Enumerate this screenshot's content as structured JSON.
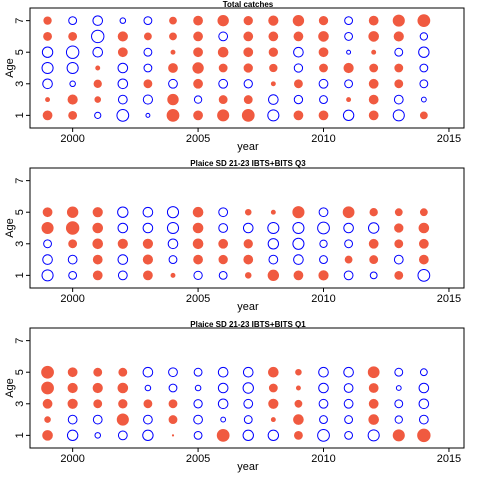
{
  "colors": {
    "positive": "#f05a40",
    "negative": "#0000ff",
    "axis": "#000000"
  },
  "chart_data": [
    {
      "type": "scatter",
      "title": "Total catches",
      "xlabel": "year",
      "ylabel": "Age",
      "xlim": [
        1998.3,
        2015.6
      ],
      "ylim": [
        0.2,
        7.8
      ],
      "x_ticks": [
        2000,
        2005,
        2010,
        2015
      ],
      "y_ticks": [
        1,
        3,
        5,
        7
      ],
      "years": [
        1999,
        2000,
        2001,
        2002,
        2003,
        2004,
        2005,
        2006,
        2007,
        2008,
        2009,
        2010,
        2011,
        2012,
        2013,
        2014
      ],
      "residuals": [
        {
          "age": 7,
          "values": [
            0.35,
            -0.4,
            -0.6,
            -0.2,
            -0.4,
            0.3,
            0.5,
            0.7,
            0.45,
            0.55,
            0.7,
            0.45,
            -0.4,
            0.5,
            0.8,
            0.9
          ]
        },
        {
          "age": 6,
          "values": [
            0.4,
            0.4,
            -1.0,
            0.55,
            0.3,
            0.3,
            0.5,
            -0.5,
            0.5,
            0.5,
            0.5,
            0.6,
            -0.4,
            0.6,
            0.55,
            -0.35
          ]
        },
        {
          "age": 5,
          "values": [
            -0.7,
            -1.0,
            -0.6,
            0.5,
            -0.4,
            0.1,
            0.5,
            0.6,
            0.5,
            0.45,
            -0.6,
            0.5,
            -0.1,
            0.1,
            -0.4,
            -0.7
          ]
        },
        {
          "age": 4,
          "values": [
            -0.8,
            -0.8,
            0.1,
            -0.6,
            -0.4,
            0.5,
            0.7,
            0.4,
            0.45,
            0.35,
            -0.45,
            0.4,
            0.55,
            0.4,
            0.4,
            -0.4
          ]
        },
        {
          "age": 3,
          "values": [
            -0.6,
            -0.2,
            0.35,
            -0.6,
            0.4,
            -0.5,
            0.5,
            -0.5,
            -0.45,
            0.1,
            0.4,
            -0.5,
            -0.4,
            0.5,
            0.4,
            -0.4
          ]
        },
        {
          "age": 2,
          "values": [
            0.1,
            0.55,
            0.2,
            -0.5,
            -0.55,
            0.7,
            -0.35,
            0.4,
            0.4,
            -0.6,
            -0.45,
            -0.4,
            0.1,
            0.5,
            -0.5,
            -0.15
          ]
        },
        {
          "age": 1,
          "values": [
            0.5,
            0.4,
            -0.25,
            -0.9,
            -0.1,
            0.9,
            0.5,
            0.8,
            0.9,
            -0.8,
            0.5,
            0.5,
            -0.7,
            0.5,
            -0.8,
            0.3
          ]
        }
      ]
    },
    {
      "type": "scatter",
      "title": "Plaice SD 21-23 IBTS+BITS Q3",
      "xlabel": "year",
      "ylabel": "Age",
      "xlim": [
        1998.3,
        2015.6
      ],
      "ylim": [
        0.2,
        7.8
      ],
      "x_ticks": [
        2000,
        2005,
        2010,
        2015
      ],
      "y_ticks": [
        1,
        3,
        5,
        7
      ],
      "years": [
        1999,
        2000,
        2001,
        2002,
        2003,
        2004,
        2005,
        2006,
        2007,
        2008,
        2009,
        2010,
        2011,
        2012,
        2013,
        2014
      ],
      "residuals": [
        {
          "age": 5,
          "values": [
            0.5,
            0.7,
            0.55,
            -0.7,
            -0.6,
            -0.8,
            0.6,
            -0.5,
            0.2,
            0.1,
            0.8,
            -0.5,
            0.75,
            0.35,
            0.3,
            0.3
          ]
        },
        {
          "age": 4,
          "values": [
            0.8,
            1.0,
            0.6,
            -0.6,
            -0.6,
            -0.8,
            0.6,
            -0.5,
            -0.6,
            -0.8,
            -0.8,
            -0.9,
            -0.6,
            -0.7,
            0.45,
            0.6
          ]
        },
        {
          "age": 3,
          "values": [
            -0.4,
            0.4,
            0.6,
            0.55,
            0.55,
            -0.6,
            0.6,
            0.5,
            0.45,
            -0.7,
            -0.8,
            -0.35,
            -0.4,
            0.5,
            0.4,
            0.5
          ]
        },
        {
          "age": 2,
          "values": [
            -0.6,
            -0.5,
            0.5,
            -0.6,
            0.55,
            -0.4,
            0.5,
            0.45,
            0.5,
            -0.5,
            -0.6,
            -0.4,
            0.3,
            0.4,
            -0.5,
            0.5
          ]
        },
        {
          "age": 1,
          "values": [
            -0.8,
            -0.4,
            0.5,
            -0.5,
            0.5,
            0.1,
            -0.45,
            -0.4,
            0.2,
            0.7,
            0.5,
            0.55,
            -0.5,
            -0.3,
            0.4,
            -0.9
          ]
        }
      ]
    },
    {
      "type": "scatter",
      "title": "Plaice SD 21-23 IBTS+BITS Q1",
      "xlabel": "year",
      "ylabel": "Age",
      "xlim": [
        1998.3,
        2015.6
      ],
      "ylim": [
        0.2,
        7.8
      ],
      "x_ticks": [
        2000,
        2005,
        2010,
        2015
      ],
      "y_ticks": [
        1,
        3,
        5,
        7
      ],
      "years": [
        1999,
        2000,
        2001,
        2002,
        2003,
        2004,
        2005,
        2006,
        2007,
        2008,
        2009,
        2010,
        2011,
        2012,
        2013,
        2014
      ],
      "residuals": [
        {
          "age": 5,
          "values": [
            0.9,
            0.5,
            0.4,
            0.4,
            -0.6,
            -0.5,
            -0.4,
            -0.6,
            -0.6,
            0.6,
            0.2,
            -0.6,
            -0.6,
            0.75,
            -0.4,
            -0.3
          ]
        },
        {
          "age": 4,
          "values": [
            0.9,
            0.55,
            0.55,
            0.6,
            -0.2,
            -0.4,
            -0.2,
            -0.6,
            -0.7,
            0.4,
            0.1,
            -0.6,
            -0.5,
            0.5,
            -0.15,
            -0.6
          ]
        },
        {
          "age": 3,
          "values": [
            0.5,
            0.55,
            0.4,
            0.45,
            0.4,
            0.4,
            -0.45,
            -0.6,
            -0.5,
            0.55,
            0.3,
            -0.5,
            -0.5,
            0.5,
            -0.4,
            -0.6
          ]
        },
        {
          "age": 2,
          "values": [
            0.2,
            -0.5,
            -0.5,
            0.8,
            -0.5,
            0.4,
            -0.5,
            -0.15,
            -0.4,
            0.1,
            0.6,
            -0.4,
            -0.4,
            0.6,
            -0.35,
            -0.5
          ]
        },
        {
          "age": 1,
          "values": [
            0.6,
            -0.7,
            -0.2,
            -0.5,
            -0.7,
            0.0,
            -0.4,
            0.9,
            -0.7,
            -0.7,
            0.4,
            -0.9,
            -0.4,
            -0.8,
            0.8,
            1.0
          ]
        }
      ]
    }
  ]
}
